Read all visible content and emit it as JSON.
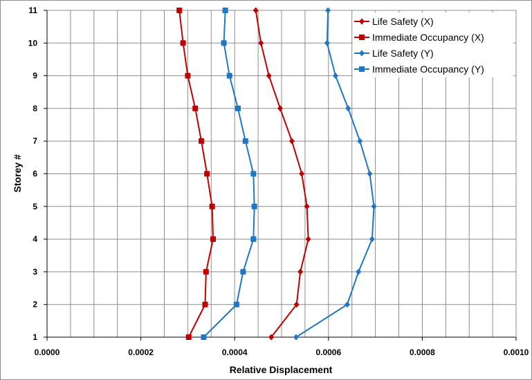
{
  "chart_data": {
    "type": "line",
    "title": "",
    "xlabel": "Relative Displacement",
    "ylabel": "Storey #",
    "xlim": [
      0,
      0.001
    ],
    "ylim": [
      1,
      11
    ],
    "x_ticks": [
      "0.0000",
      "0.0002",
      "0.0004",
      "0.0006",
      "0.0008",
      "0.0010"
    ],
    "x_tick_values": [
      0,
      0.0002,
      0.0004,
      0.0006,
      0.0008,
      0.001
    ],
    "y_ticks": [
      "1",
      "2",
      "3",
      "4",
      "5",
      "6",
      "7",
      "8",
      "9",
      "10",
      "11"
    ],
    "y_tick_values": [
      1,
      2,
      3,
      4,
      5,
      6,
      7,
      8,
      9,
      10,
      11
    ],
    "x_minor_step": 5e-05,
    "grid": true,
    "legend_position": "top-right",
    "series": [
      {
        "name": "Life Safety (X)",
        "color": "#c00000",
        "marker": "diamond",
        "points": [
          [
            0.000478,
            1
          ],
          [
            0.000532,
            2
          ],
          [
            0.00054,
            3
          ],
          [
            0.000557,
            4
          ],
          [
            0.000554,
            5
          ],
          [
            0.000543,
            6
          ],
          [
            0.000522,
            7
          ],
          [
            0.000497,
            8
          ],
          [
            0.000473,
            9
          ],
          [
            0.000456,
            10
          ],
          [
            0.000445,
            11
          ]
        ]
      },
      {
        "name": "Immediate Occupancy (X)",
        "color": "#c00000",
        "marker": "square",
        "points": [
          [
            0.000302,
            1
          ],
          [
            0.000337,
            2
          ],
          [
            0.000339,
            3
          ],
          [
            0.000354,
            4
          ],
          [
            0.000352,
            5
          ],
          [
            0.000341,
            6
          ],
          [
            0.000329,
            7
          ],
          [
            0.000316,
            8
          ],
          [
            0.0003,
            9
          ],
          [
            0.00029,
            10
          ],
          [
            0.000282,
            11
          ]
        ]
      },
      {
        "name": "Life Safety (Y)",
        "color": "#1f77c4",
        "marker": "diamond",
        "points": [
          [
            0.000531,
            1
          ],
          [
            0.00064,
            2
          ],
          [
            0.000664,
            3
          ],
          [
            0.000693,
            4
          ],
          [
            0.000697,
            5
          ],
          [
            0.000688,
            6
          ],
          [
            0.000667,
            7
          ],
          [
            0.000642,
            8
          ],
          [
            0.000615,
            9
          ],
          [
            0.000597,
            10
          ],
          [
            0.000599,
            11
          ]
        ]
      },
      {
        "name": "Immediate Occupancy (Y)",
        "color": "#1f77c4",
        "marker": "square",
        "points": [
          [
            0.000334,
            1
          ],
          [
            0.000404,
            2
          ],
          [
            0.000418,
            3
          ],
          [
            0.00044,
            4
          ],
          [
            0.000442,
            5
          ],
          [
            0.00044,
            6
          ],
          [
            0.000423,
            7
          ],
          [
            0.000407,
            8
          ],
          [
            0.000389,
            9
          ],
          [
            0.000377,
            10
          ],
          [
            0.00038,
            11
          ]
        ]
      }
    ]
  }
}
